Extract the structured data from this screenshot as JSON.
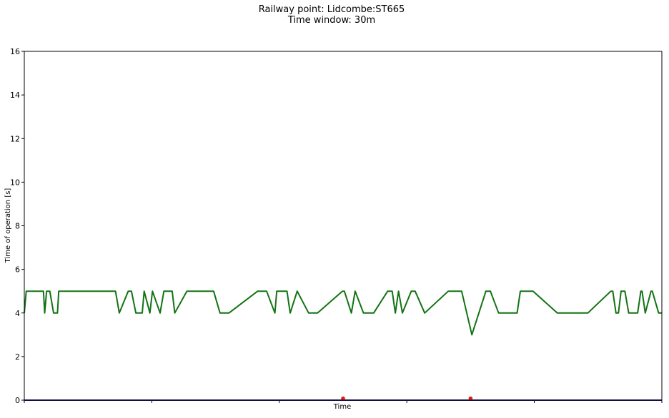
{
  "chart_data": {
    "type": "line",
    "title": "Railway point: Lidcombe:ST665",
    "subtitle": "Time window: 30m",
    "xlabel": "Time",
    "ylabel": "Time of operation [s]",
    "ylim": [
      0,
      16
    ],
    "xlim": [
      0,
      1
    ],
    "yticks": [
      0,
      2,
      4,
      6,
      8,
      10,
      12,
      14,
      16
    ],
    "xticks": [
      0,
      0.2,
      0.4,
      0.6,
      0.8,
      1.0
    ],
    "xtick_labels": [],
    "grid": false,
    "legend": "none",
    "colors": {
      "operation_line": "#137313",
      "baseline": "#1f1f8f",
      "markers": "#e31a1c"
    },
    "series": [
      {
        "color": "#137313",
        "x": [
          0,
          0.003,
          0.03,
          0.032,
          0.035,
          0.04,
          0.046,
          0.052,
          0.054,
          0.143,
          0.149,
          0.163,
          0.168,
          0.175,
          0.185,
          0.188,
          0.197,
          0.201,
          0.213,
          0.219,
          0.232,
          0.236,
          0.255,
          0.297,
          0.307,
          0.321,
          0.366,
          0.38,
          0.393,
          0.396,
          0.412,
          0.417,
          0.428,
          0.446,
          0.46,
          0.499,
          0.502,
          0.513,
          0.519,
          0.532,
          0.548,
          0.57,
          0.577,
          0.582,
          0.587,
          0.593,
          0.607,
          0.613,
          0.628,
          0.665,
          0.686,
          0.702,
          0.724,
          0.731,
          0.744,
          0.773,
          0.778,
          0.798,
          0.836,
          0.884,
          0.92,
          0.923,
          0.928,
          0.932,
          0.936,
          0.942,
          0.948,
          0.962,
          0.967,
          0.969,
          0.974,
          0.983,
          0.985,
          0.995,
          1.0
        ],
        "y": [
          4,
          5,
          5,
          4,
          5,
          5,
          4,
          4,
          5,
          5,
          4,
          5,
          5,
          4,
          4,
          5,
          4,
          5,
          4,
          5,
          5,
          4,
          5,
          5,
          4,
          4,
          5,
          5,
          4,
          5,
          5,
          4,
          5,
          4,
          4,
          5,
          5,
          4,
          5,
          4,
          4,
          5,
          5,
          4,
          5,
          4,
          5,
          5,
          4,
          5,
          5,
          3,
          5,
          5,
          4,
          4,
          5,
          5,
          4,
          4,
          5,
          5,
          4,
          4,
          5,
          5,
          4,
          4,
          5,
          5,
          4,
          5,
          5,
          4,
          4
        ]
      }
    ],
    "baseline": {
      "y": 0
    },
    "markers": [
      {
        "x": 0.5,
        "y": 0.08
      },
      {
        "x": 0.7,
        "y": 0.08
      }
    ]
  }
}
